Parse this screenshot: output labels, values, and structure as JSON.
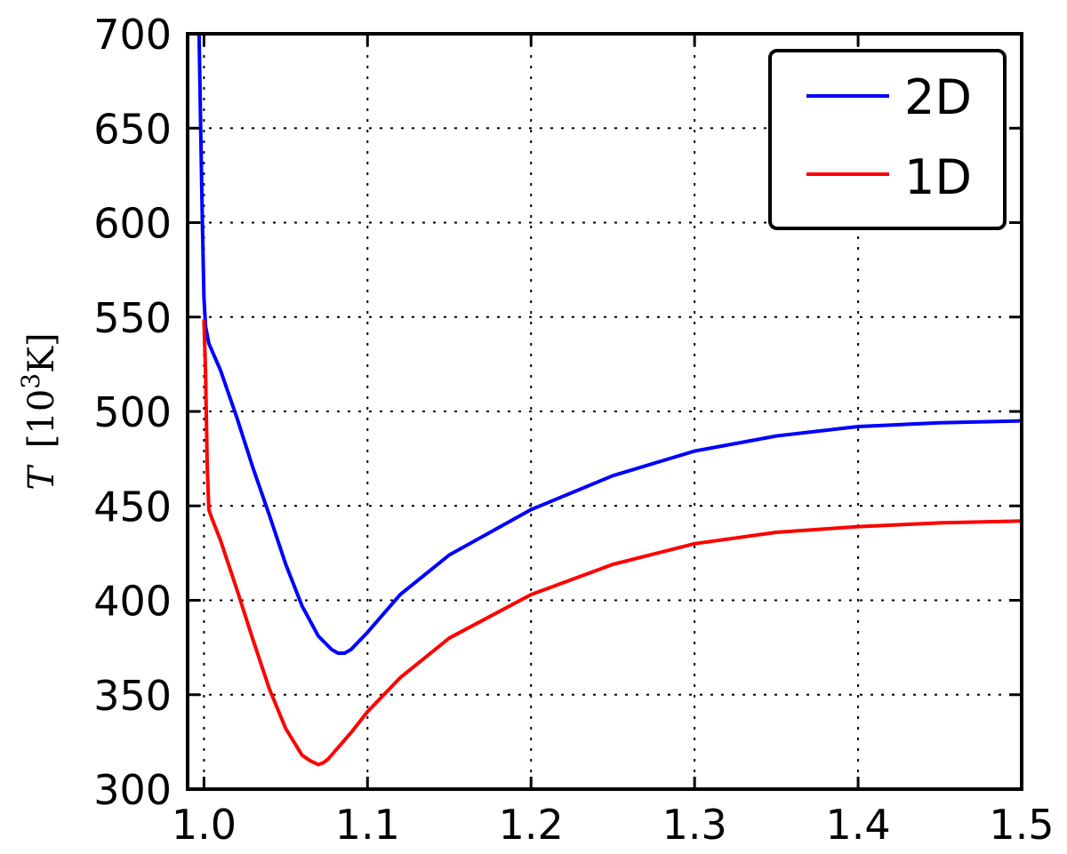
{
  "chart_data": {
    "type": "line",
    "title": "",
    "xlabel": "",
    "ylabel": "T [10³K]",
    "ylabel_parts": {
      "symbol": "T",
      "unit_open": "[10",
      "unit_exp": "3",
      "unit_close": "K]"
    },
    "xlim": [
      0.99,
      1.5
    ],
    "ylim": [
      300,
      700
    ],
    "xticks": [
      1.0,
      1.1,
      1.2,
      1.3,
      1.4,
      1.5
    ],
    "xtick_labels": [
      "1.0",
      "1.1",
      "1.2",
      "1.3",
      "1.4",
      "1.5"
    ],
    "yticks": [
      300,
      350,
      400,
      450,
      500,
      550,
      600,
      650,
      700
    ],
    "ytick_labels": [
      "300",
      "350",
      "400",
      "450",
      "500",
      "550",
      "600",
      "650",
      "700"
    ],
    "grid": true,
    "legend_position": "top-right",
    "series": [
      {
        "name": "2D",
        "color": "#0000ff",
        "x": [
          0.997,
          0.998,
          0.999,
          1.0,
          1.001,
          1.003,
          1.006,
          1.01,
          1.02,
          1.03,
          1.04,
          1.05,
          1.06,
          1.07,
          1.078,
          1.082,
          1.086,
          1.09,
          1.1,
          1.12,
          1.15,
          1.2,
          1.25,
          1.3,
          1.35,
          1.4,
          1.45,
          1.5
        ],
        "y": [
          700,
          650,
          600,
          560,
          545,
          536,
          530,
          522,
          497,
          470,
          445,
          419,
          397,
          381,
          374,
          372,
          372,
          374,
          383,
          403,
          424,
          448,
          466,
          479,
          487,
          492,
          494,
          495
        ]
      },
      {
        "name": "1D",
        "color": "#ff0000",
        "x": [
          1.0,
          1.001,
          1.002,
          1.003,
          1.005,
          1.01,
          1.02,
          1.03,
          1.04,
          1.05,
          1.06,
          1.065,
          1.07,
          1.073,
          1.076,
          1.08,
          1.09,
          1.1,
          1.12,
          1.15,
          1.2,
          1.25,
          1.3,
          1.35,
          1.4,
          1.45,
          1.5
        ],
        "y": [
          548,
          520,
          470,
          448,
          443,
          432,
          406,
          379,
          353,
          332,
          318,
          315,
          313,
          314,
          316,
          320,
          330,
          341,
          359,
          380,
          403,
          419,
          430,
          436,
          439,
          441,
          442
        ]
      }
    ]
  }
}
